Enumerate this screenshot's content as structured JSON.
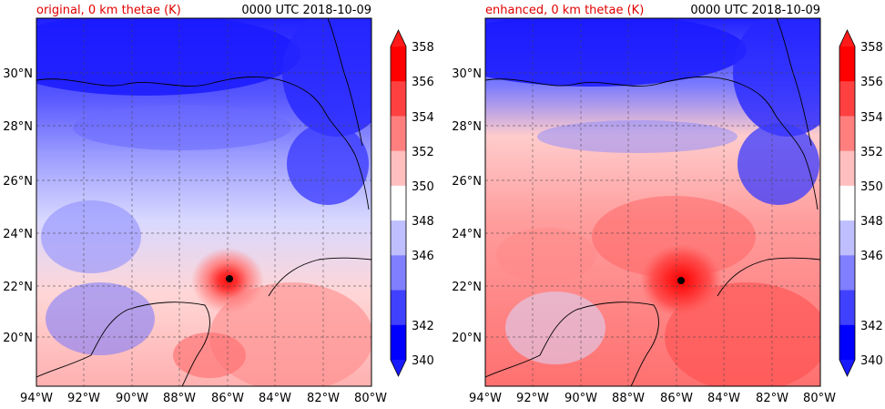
{
  "panels": [
    {
      "title": "original, 0 km thetae (K)",
      "time": "0000 UTC 2018-10-09",
      "style": "original"
    },
    {
      "title": "enhanced, 0 km thetae (K)",
      "time": "0000 UTC 2018-10-09",
      "style": "enhanced"
    }
  ],
  "lat_ticks": [
    "30°N",
    "28°N",
    "26°N",
    "24°N",
    "22°N",
    "20°N"
  ],
  "lon_ticks": [
    "94°W",
    "92°W",
    "90°W",
    "88°W",
    "86°W",
    "84°W",
    "82°W",
    "80°W"
  ],
  "colorbar": {
    "labels": [
      "358",
      "356",
      "354",
      "352",
      "350",
      "348",
      "346",
      "342",
      "340"
    ],
    "levels": [
      "358",
      "356",
      "354",
      "352",
      "350",
      "348",
      "346",
      "344",
      "342",
      "340"
    ],
    "colors": [
      "#ff0000",
      "#ff4040",
      "#ff7f7f",
      "#ffbfbf",
      "#ffffff",
      "#bfbfff",
      "#7f7fff",
      "#4040ff",
      "#0000ff"
    ]
  },
  "colors": {
    "warm_max": "#ff1a1a",
    "cold_max": "#1a1aff",
    "title_red": "#e00000"
  }
}
